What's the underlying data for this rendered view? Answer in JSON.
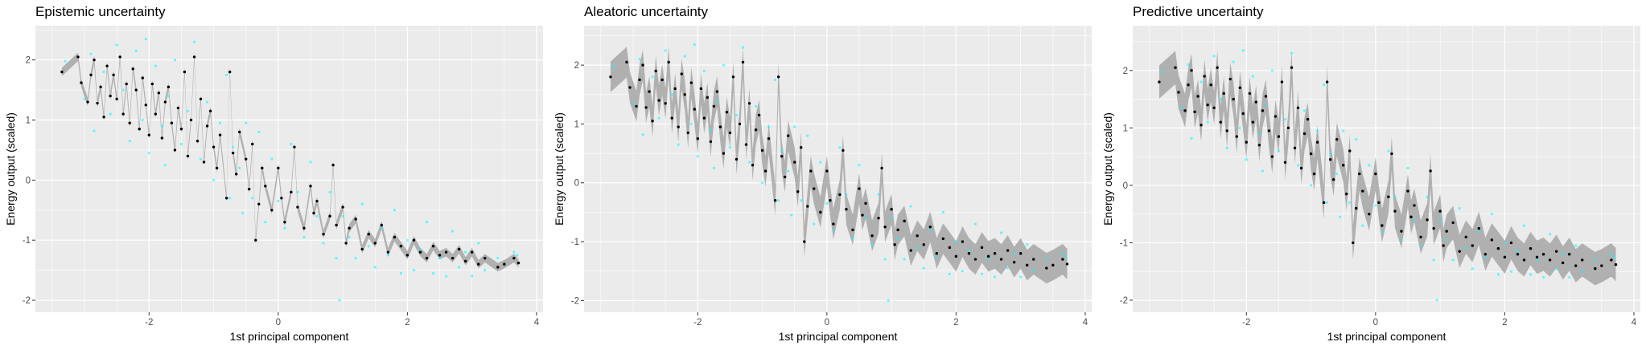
{
  "chart_data": [
    {
      "type": "scatter",
      "title": "Epistemic uncertainty",
      "xlabel": "1st principal component",
      "ylabel": "Energy output (scaled)",
      "xlim": [
        -3.76,
        4.1
      ],
      "ylim": [
        -2.2,
        2.57
      ],
      "xticks": [
        -2,
        0,
        2,
        4
      ],
      "yticks": [
        -2,
        -1,
        0,
        1,
        2
      ],
      "grid": true,
      "band_halfwidth": 0.07
    },
    {
      "type": "scatter",
      "title": "Aleatoric uncertainty",
      "xlabel": "1st principal component",
      "ylabel": "Energy output (scaled)",
      "xlim": [
        -3.76,
        4.1
      ],
      "ylim": [
        -2.2,
        2.67
      ],
      "xticks": [
        -2,
        0,
        2,
        4
      ],
      "yticks": [
        -2,
        -1,
        0,
        1,
        2
      ],
      "grid": true,
      "band_halfwidth": 0.26
    },
    {
      "type": "scatter",
      "title": "Predictive uncertainty",
      "xlabel": "1st principal component",
      "ylabel": "Energy output (scaled)",
      "xlim": [
        -3.76,
        4.1
      ],
      "ylim": [
        -2.21,
        2.78
      ],
      "xticks": [
        -2,
        0,
        2,
        4
      ],
      "yticks": [
        -2,
        -1,
        0,
        1,
        2
      ],
      "grid": true,
      "band_halfwidth": 0.29
    }
  ],
  "colors": {
    "observed": "#000000",
    "predicted": "#00FFFF",
    "band": "#A6A6A6",
    "panel_bg": "#EBEBEB",
    "grid": "#FFFFFF"
  },
  "observed_points": [
    [
      -3.35,
      1.8
    ],
    [
      -3.1,
      2.05
    ],
    [
      -3.05,
      1.62
    ],
    [
      -2.95,
      1.3
    ],
    [
      -2.9,
      1.75
    ],
    [
      -2.85,
      2.0
    ],
    [
      -2.8,
      1.28
    ],
    [
      -2.75,
      1.55
    ],
    [
      -2.7,
      1.05
    ],
    [
      -2.65,
      1.9
    ],
    [
      -2.6,
      1.4
    ],
    [
      -2.55,
      1.75
    ],
    [
      -2.5,
      1.35
    ],
    [
      -2.45,
      2.05
    ],
    [
      -2.4,
      1.1
    ],
    [
      -2.35,
      1.6
    ],
    [
      -2.3,
      0.95
    ],
    [
      -2.25,
      1.85
    ],
    [
      -2.2,
      1.5
    ],
    [
      -2.15,
      0.85
    ],
    [
      -2.1,
      1.7
    ],
    [
      -2.05,
      1.25
    ],
    [
      -2.0,
      0.75
    ],
    [
      -1.95,
      1.6
    ],
    [
      -1.9,
      1.1
    ],
    [
      -1.85,
      1.45
    ],
    [
      -1.8,
      0.7
    ],
    [
      -1.75,
      1.3
    ],
    [
      -1.7,
      1.55
    ],
    [
      -1.65,
      0.95
    ],
    [
      -1.6,
      0.5
    ],
    [
      -1.55,
      1.2
    ],
    [
      -1.5,
      0.85
    ],
    [
      -1.45,
      1.8
    ],
    [
      -1.4,
      0.4
    ],
    [
      -1.35,
      1.0
    ],
    [
      -1.3,
      2.05
    ],
    [
      -1.25,
      0.65
    ],
    [
      -1.2,
      1.35
    ],
    [
      -1.15,
      0.3
    ],
    [
      -1.1,
      0.9
    ],
    [
      -1.05,
      1.15
    ],
    [
      -1.0,
      0.55
    ],
    [
      -0.95,
      0.2
    ],
    [
      -0.9,
      0.75
    ],
    [
      -0.8,
      -0.3
    ],
    [
      -0.75,
      1.8
    ],
    [
      -0.7,
      0.45
    ],
    [
      -0.65,
      0.1
    ],
    [
      -0.6,
      0.8
    ],
    [
      -0.5,
      0.35
    ],
    [
      -0.45,
      -0.15
    ],
    [
      -0.4,
      0.6
    ],
    [
      -0.35,
      -1.0
    ],
    [
      -0.3,
      -0.4
    ],
    [
      -0.25,
      0.2
    ],
    [
      -0.2,
      -0.1
    ],
    [
      -0.1,
      -0.5
    ],
    [
      0.0,
      0.2
    ],
    [
      0.05,
      -0.3
    ],
    [
      0.1,
      -0.7
    ],
    [
      0.2,
      -0.2
    ],
    [
      0.25,
      0.55
    ],
    [
      0.3,
      -0.45
    ],
    [
      0.4,
      -0.8
    ],
    [
      0.5,
      -0.1
    ],
    [
      0.55,
      -0.55
    ],
    [
      0.6,
      -0.35
    ],
    [
      0.7,
      -0.9
    ],
    [
      0.8,
      -0.6
    ],
    [
      0.85,
      0.25
    ],
    [
      0.9,
      -0.75
    ],
    [
      1.0,
      -0.45
    ],
    [
      1.05,
      -1.05
    ],
    [
      1.1,
      -0.8
    ],
    [
      1.2,
      -0.65
    ],
    [
      1.3,
      -1.15
    ],
    [
      1.4,
      -0.9
    ],
    [
      1.5,
      -1.05
    ],
    [
      1.6,
      -0.75
    ],
    [
      1.7,
      -1.2
    ],
    [
      1.8,
      -0.95
    ],
    [
      1.9,
      -1.1
    ],
    [
      2.0,
      -1.25
    ],
    [
      2.1,
      -1.0
    ],
    [
      2.2,
      -1.2
    ],
    [
      2.3,
      -1.3
    ],
    [
      2.4,
      -1.1
    ],
    [
      2.5,
      -1.25
    ],
    [
      2.6,
      -1.2
    ],
    [
      2.7,
      -1.3
    ],
    [
      2.8,
      -1.15
    ],
    [
      2.9,
      -1.35
    ],
    [
      3.0,
      -1.2
    ],
    [
      3.1,
      -1.4
    ],
    [
      3.2,
      -1.3
    ],
    [
      3.4,
      -1.45
    ],
    [
      3.5,
      -1.4
    ],
    [
      3.65,
      -1.3
    ],
    [
      3.72,
      -1.38
    ]
  ],
  "predicted_points": [
    [
      -3.3,
      1.98
    ],
    [
      -3.0,
      1.35
    ],
    [
      -2.9,
      2.1
    ],
    [
      -2.85,
      0.82
    ],
    [
      -2.7,
      1.8
    ],
    [
      -2.6,
      1.1
    ],
    [
      -2.5,
      2.25
    ],
    [
      -2.4,
      1.5
    ],
    [
      -2.3,
      0.65
    ],
    [
      -2.2,
      2.15
    ],
    [
      -2.1,
      1.0
    ],
    [
      -2.05,
      2.35
    ],
    [
      -2.0,
      0.45
    ],
    [
      -1.9,
      1.9
    ],
    [
      -1.8,
      0.9
    ],
    [
      -1.75,
      0.25
    ],
    [
      -1.7,
      1.4
    ],
    [
      -1.6,
      2.0
    ],
    [
      -1.5,
      0.6
    ],
    [
      -1.4,
      1.15
    ],
    [
      -1.3,
      2.3
    ],
    [
      -1.2,
      0.35
    ],
    [
      -1.1,
      1.3
    ],
    [
      -1.0,
      0.0
    ],
    [
      -0.9,
      0.95
    ],
    [
      -0.8,
      1.75
    ],
    [
      -0.75,
      -0.3
    ],
    [
      -0.7,
      0.55
    ],
    [
      -0.6,
      0.2
    ],
    [
      -0.5,
      0.95
    ],
    [
      -0.55,
      -0.55
    ],
    [
      -0.4,
      -0.3
    ],
    [
      -0.3,
      0.8
    ],
    [
      -0.2,
      -0.7
    ],
    [
      -0.1,
      0.35
    ],
    [
      0.0,
      -0.35
    ],
    [
      0.1,
      -0.8
    ],
    [
      0.2,
      0.6
    ],
    [
      0.3,
      -0.2
    ],
    [
      0.4,
      -0.95
    ],
    [
      0.5,
      0.3
    ],
    [
      0.6,
      -0.6
    ],
    [
      0.7,
      -1.05
    ],
    [
      0.8,
      -0.2
    ],
    [
      0.9,
      -1.3
    ],
    [
      0.95,
      -2.0
    ],
    [
      1.0,
      -0.6
    ],
    [
      1.1,
      -0.95
    ],
    [
      1.2,
      -1.3
    ],
    [
      1.3,
      -0.4
    ],
    [
      1.4,
      -1.1
    ],
    [
      1.5,
      -1.45
    ],
    [
      1.6,
      -0.8
    ],
    [
      1.7,
      -1.25
    ],
    [
      1.8,
      -0.5
    ],
    [
      1.9,
      -1.55
    ],
    [
      2.0,
      -1.0
    ],
    [
      2.1,
      -1.5
    ],
    [
      2.2,
      -1.15
    ],
    [
      2.3,
      -0.7
    ],
    [
      2.4,
      -1.55
    ],
    [
      2.5,
      -1.3
    ],
    [
      2.6,
      -1.6
    ],
    [
      2.7,
      -0.85
    ],
    [
      2.8,
      -1.45
    ],
    [
      2.9,
      -1.2
    ],
    [
      3.0,
      -1.6
    ],
    [
      3.1,
      -1.05
    ],
    [
      3.2,
      -1.5
    ],
    [
      3.4,
      -1.3
    ],
    [
      3.65,
      -1.2
    ],
    [
      3.7,
      -1.25
    ]
  ]
}
